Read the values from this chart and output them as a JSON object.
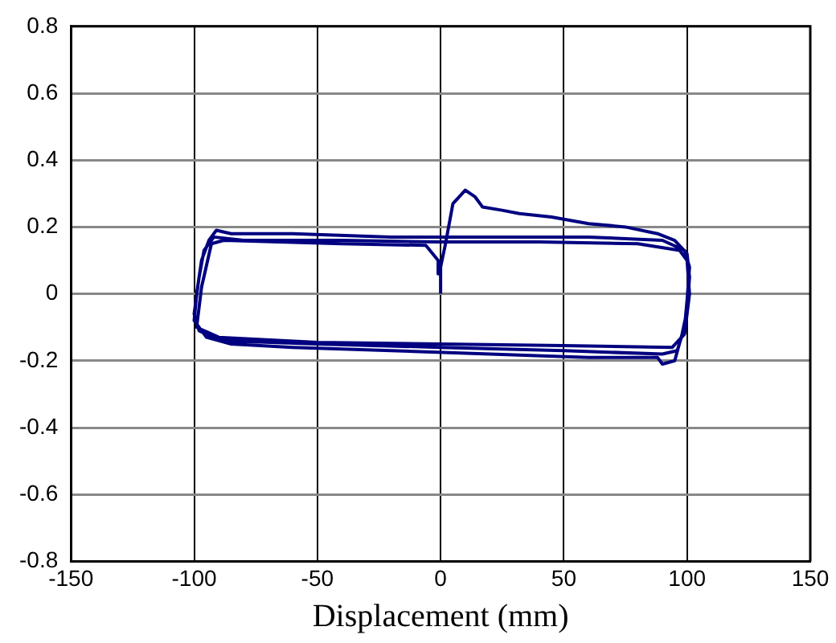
{
  "chart_data": {
    "type": "line",
    "xlabel": "Displacement (mm)",
    "xlim": [
      -150,
      150
    ],
    "xticks": [
      -150,
      -100,
      -50,
      0,
      50,
      100,
      150
    ],
    "ylim": [
      -0.8,
      0.8
    ],
    "yticks": [
      -0.8,
      -0.6,
      -0.4,
      -0.2,
      0,
      0.2,
      0.4,
      0.6,
      0.8
    ],
    "grid": true,
    "legend": false,
    "marker": "none",
    "line_style": "solid",
    "series": [
      {
        "color": "#000080",
        "x": [
          0,
          0,
          2,
          5,
          10,
          14,
          17,
          25,
          32,
          45,
          60,
          75,
          88,
          95,
          100,
          101,
          100,
          98,
          95,
          90,
          88,
          60,
          20,
          -20,
          -60,
          -85,
          -95,
          -100,
          -99,
          -97,
          -94,
          -91,
          -85,
          -60,
          -20,
          20,
          60,
          90,
          99,
          101,
          100,
          99,
          96,
          90,
          50,
          0,
          -50,
          -90,
          -98,
          -100,
          -98,
          -96,
          -92,
          -80,
          -40,
          0,
          40,
          80,
          97,
          100,
          101,
          99,
          94,
          50,
          0,
          -50,
          -90,
          -99,
          -97,
          -93,
          -88,
          -40,
          -6,
          -1,
          -1
        ],
        "values": [
          0,
          0.08,
          0.15,
          0.27,
          0.31,
          0.29,
          0.26,
          0.25,
          0.24,
          0.23,
          0.21,
          0.2,
          0.18,
          0.16,
          0.12,
          0.05,
          -0.05,
          -0.12,
          -0.2,
          -0.21,
          -0.19,
          -0.19,
          -0.18,
          -0.17,
          -0.16,
          -0.15,
          -0.13,
          -0.08,
          0,
          0.1,
          0.16,
          0.19,
          0.18,
          0.18,
          0.17,
          0.17,
          0.17,
          0.16,
          0.13,
          0.08,
          -0.02,
          -0.1,
          -0.17,
          -0.18,
          -0.17,
          -0.16,
          -0.15,
          -0.14,
          -0.11,
          -0.06,
          0.05,
          0.13,
          0.17,
          0.16,
          0.16,
          0.155,
          0.155,
          0.15,
          0.13,
          0.1,
          0,
          -0.12,
          -0.16,
          -0.155,
          -0.15,
          -0.145,
          -0.13,
          -0.1,
          0.02,
          0.15,
          0.16,
          0.15,
          0.145,
          0.1,
          0.06
        ]
      }
    ]
  }
}
